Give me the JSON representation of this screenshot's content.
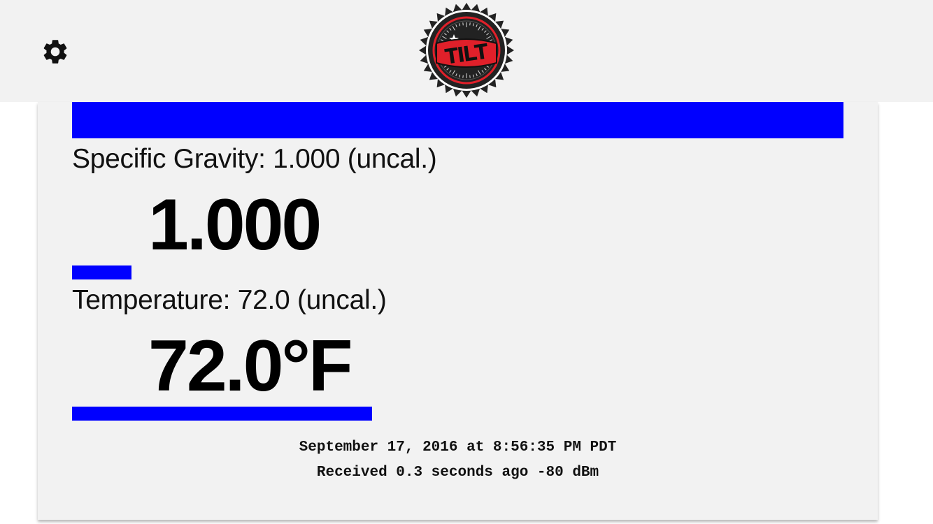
{
  "header": {
    "settings_icon": "gear-icon",
    "logo_text": "TILT",
    "colors": {
      "logo_red": "#e0202a",
      "logo_dark": "#222222"
    }
  },
  "card": {
    "color_bar": "#0000ff",
    "gravity": {
      "label": "Specific Gravity: 1.000 (uncal.)",
      "value": "1.000",
      "level_fraction": 0.077
    },
    "temperature": {
      "label": "Temperature: 72.0 (uncal.)",
      "value": "72.0°F",
      "level_fraction": 0.389
    },
    "timestamp": "September 17, 2016 at 8:56:35 PM PDT",
    "received": "Received 0.3 seconds ago -80 dBm"
  }
}
